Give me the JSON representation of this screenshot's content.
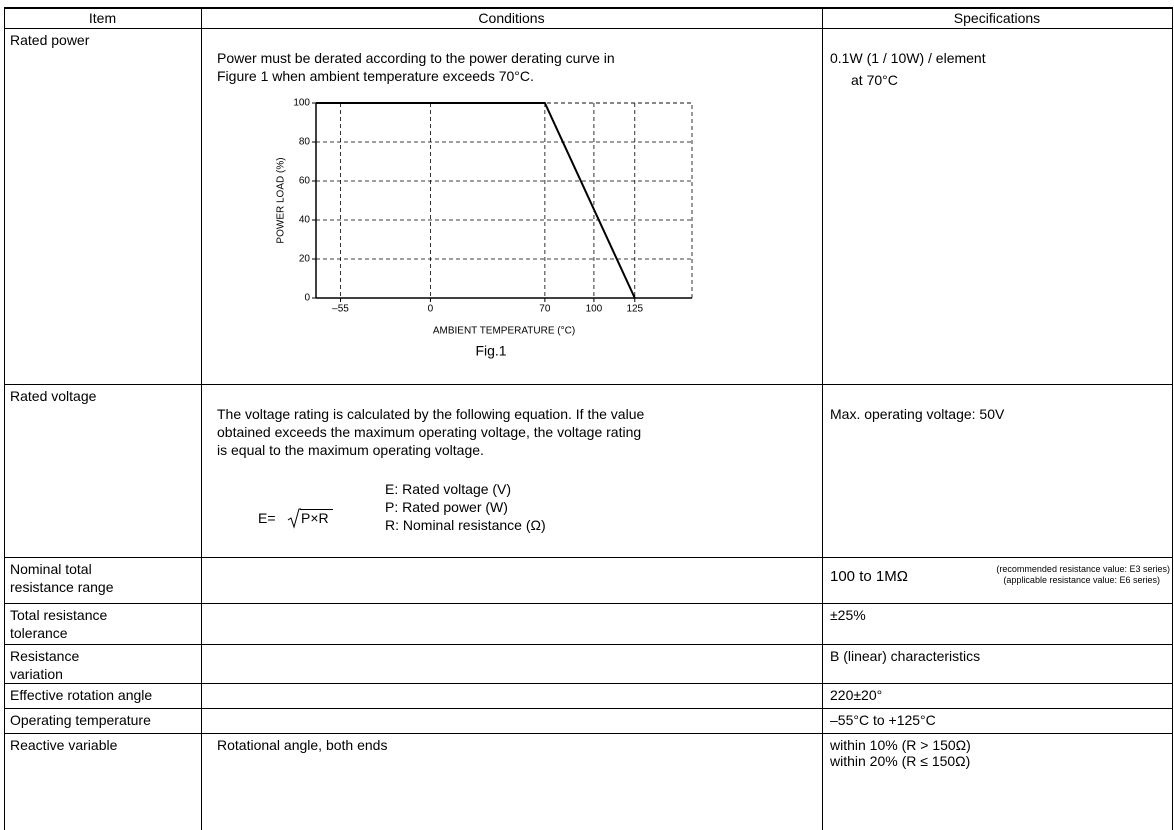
{
  "table": {
    "headers": [
      "Item",
      "Conditions",
      "Specifications"
    ],
    "rows": [
      {
        "item": [
          "Rated power"
        ],
        "conditions": [
          "Power must be derated according to the power derating curve in",
          "Figure 1 when ambient temperature exceeds 70°C."
        ],
        "figure": {
          "type": "line",
          "x_label": "AMBIENT  TEMPERATURE (°C)",
          "y_label": "POWER  LOAD (%)",
          "caption": "Fig.1",
          "x": [
            -70,
            70,
            125
          ],
          "y": [
            100,
            100,
            0
          ],
          "color": "#000000",
          "xlim": [
            -70,
            160
          ],
          "ylim": [
            0,
            100
          ],
          "xticks": [
            {
              "value": -55,
              "label": "–55"
            },
            0,
            70,
            100,
            125
          ],
          "yticks": [
            0,
            20,
            40,
            60,
            80,
            100
          ],
          "grid": true
        },
        "specifications": [
          "0.1W (1 / 10W) / element",
          "at 70°C"
        ]
      },
      {
        "item": [
          "Rated voltage"
        ],
        "conditions": [
          "The voltage rating is calculated by the following equation. If the value",
          "obtained exceeds the maximum operating voltage, the voltage rating",
          "is equal to the maximum operating voltage."
        ],
        "equation": {
          "lhs": "E=",
          "radicand": "P×R",
          "terms": [
            "E: Rated voltage (V)",
            "P: Rated power (W)",
            "R: Nominal resistance (Ω)"
          ]
        },
        "specifications": [
          "Max. operating voltage: 50V"
        ]
      },
      {
        "item": [
          "Nominal total",
          "resistance range"
        ],
        "conditions": [],
        "specifications": [
          "100 to 1MΩ",
          "(recommended resistance value: E3 series)",
          "(applicable resistance value: E6 series)"
        ]
      },
      {
        "item": [
          "Total resistance",
          "tolerance"
        ],
        "conditions": [],
        "specifications": [
          "±25%"
        ]
      },
      {
        "item": [
          "Resistance",
          "variation"
        ],
        "conditions": [],
        "specifications": [
          "B (linear) characteristics"
        ]
      },
      {
        "item": [
          "Effective rotation angle"
        ],
        "conditions": [],
        "specifications": [
          "220±20°"
        ]
      },
      {
        "item": [
          "Operating temperature"
        ],
        "conditions": [],
        "specifications": [
          "–55°C to +125°C"
        ]
      },
      {
        "item": [
          "Reactive variable"
        ],
        "conditions": [
          "Rotational angle, both ends"
        ],
        "specifications": [
          "within 10% (R > 150Ω)",
          "within 20% (R ≤ 150Ω)"
        ]
      }
    ]
  }
}
